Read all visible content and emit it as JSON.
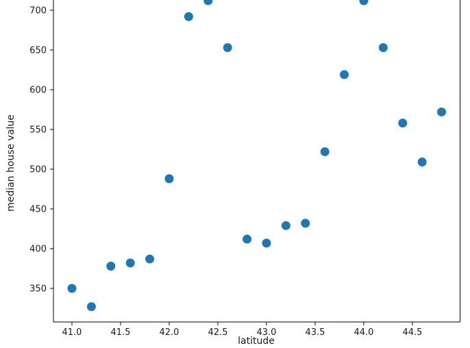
{
  "chart_data": {
    "type": "scatter",
    "title": "",
    "xlabel": "latitude",
    "ylabel": "median house value",
    "x": [
      41.0,
      41.2,
      41.4,
      41.6,
      41.8,
      42.0,
      42.2,
      42.4,
      42.6,
      42.8,
      43.0,
      43.2,
      43.4,
      43.6,
      43.8,
      44.0,
      44.2,
      44.4,
      44.6,
      44.8
    ],
    "y": [
      350,
      327,
      378,
      382,
      387,
      488,
      692,
      712,
      653,
      412,
      407,
      429,
      432,
      522,
      619,
      712,
      653,
      558,
      509,
      572
    ],
    "xticks": [
      41.0,
      41.5,
      42.0,
      42.5,
      43.0,
      43.5,
      44.0,
      44.5
    ],
    "xtick_labels": [
      "41.0",
      "41.5",
      "42.0",
      "42.5",
      "43.0",
      "43.5",
      "44.0",
      "44.5"
    ],
    "yticks": [
      350,
      400,
      450,
      500,
      550,
      600,
      650,
      700
    ],
    "ytick_labels": [
      "350",
      "400",
      "450",
      "500",
      "550",
      "600",
      "650",
      "700"
    ],
    "xlim": [
      40.81,
      44.99
    ],
    "ylim": [
      307.75,
      731.25
    ],
    "marker_color": "#1f77b4",
    "marker_radius": 6.5,
    "grid": false
  }
}
